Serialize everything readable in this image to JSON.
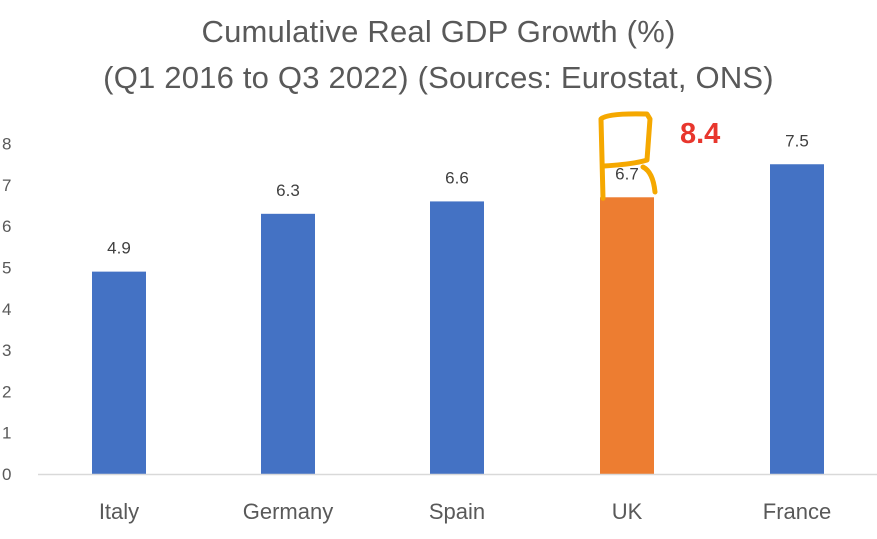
{
  "colors": {
    "bar_default": "#4472c4",
    "bar_highlight": "#ed7d31",
    "annotation_box": "#f5a800",
    "annotation_text": "#e8362d",
    "axis": "#d9d9d9",
    "text": "#595959"
  },
  "chart_data": {
    "type": "bar",
    "title_line1": "Cumulative Real GDP Growth (%)",
    "title_line2": "(Q1 2016 to Q3 2022) (Sources: Eurostat, ONS)",
    "categories": [
      "Italy",
      "Germany",
      "Spain",
      "UK",
      "France"
    ],
    "values": [
      4.9,
      6.3,
      6.6,
      6.7,
      7.5
    ],
    "data_labels": [
      "4.9",
      "6.3",
      "6.6",
      "6.7",
      "7.5"
    ],
    "highlight_category": "UK",
    "yticks": [
      "0",
      "1",
      "2",
      "3",
      "4",
      "5",
      "6",
      "7",
      "8"
    ],
    "ylim": [
      0,
      8
    ],
    "xlabel": "",
    "ylabel": "",
    "grid": false,
    "annotation": {
      "category": "UK",
      "text": "8.4",
      "value": 8.4
    }
  }
}
